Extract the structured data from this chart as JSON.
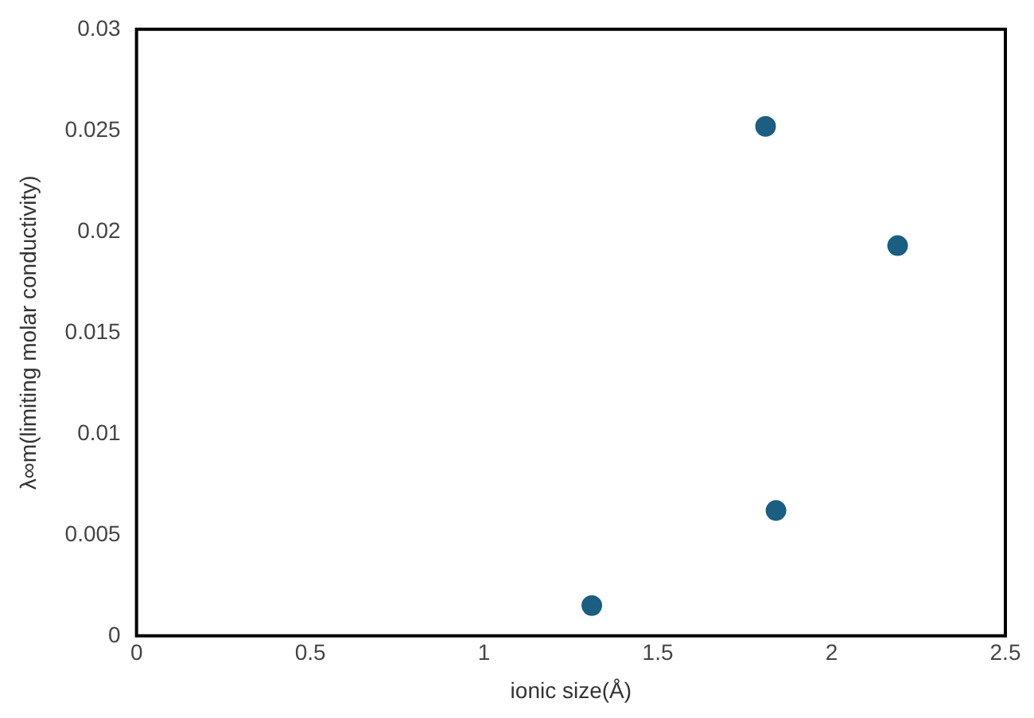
{
  "chart_data": {
    "type": "scatter",
    "xlabel": "ionic size(Å)",
    "ylabel": "λ∞m(limiting molar conductivity)",
    "x": [
      1.31,
      1.81,
      2.19,
      1.84
    ],
    "series": [
      {
        "color": "#1b5e82",
        "values": [
          0.0015,
          0.0252,
          0.0193,
          0.0062
        ]
      }
    ],
    "xlim": [
      0,
      2.5
    ],
    "xticks": [
      0,
      0.5,
      1,
      1.5,
      2,
      2.5
    ],
    "ylim": [
      0,
      0.03
    ],
    "yticks": [
      0,
      0.005,
      0.01,
      0.015,
      0.02,
      0.025,
      0.03
    ],
    "grid": false,
    "legend": false,
    "marker": "circle"
  }
}
